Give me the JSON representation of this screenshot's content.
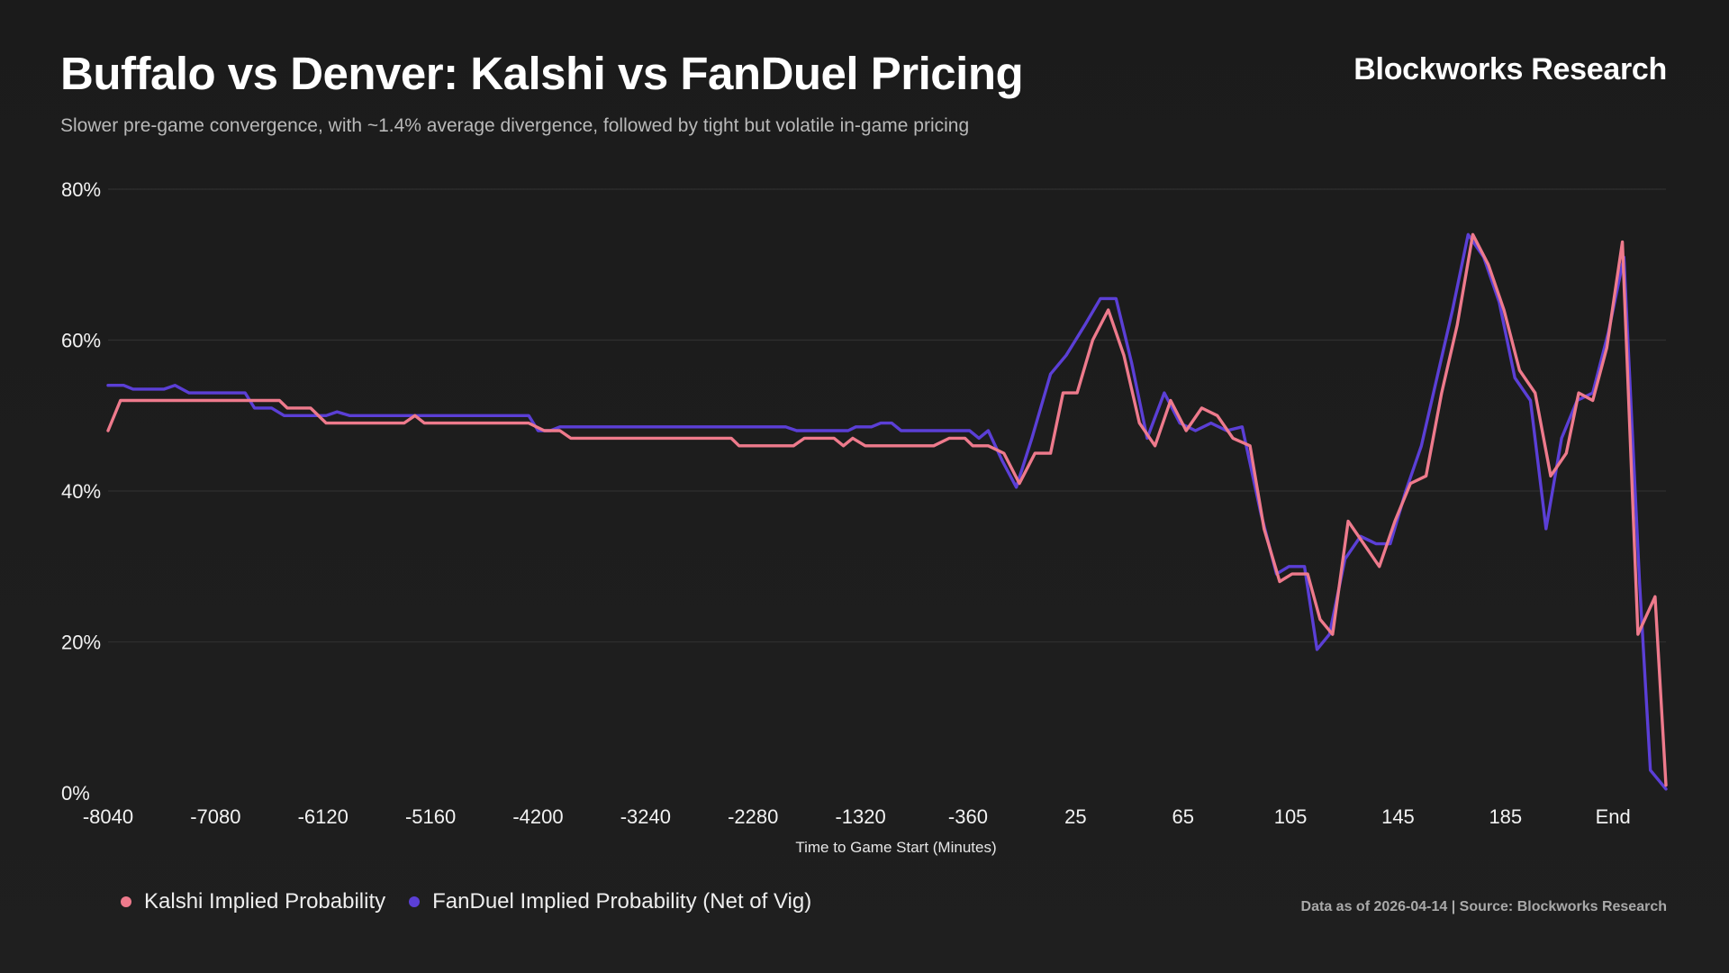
{
  "header": {
    "title": "Buffalo vs Denver: Kalshi vs FanDuel Pricing",
    "subtitle": "Slower pre-game convergence, with ~1.4% average divergence, followed by tight but volatile in-game pricing",
    "brand": "Blockworks Research"
  },
  "footer": {
    "source": "Data as of 2026-04-14 | Source: Blockworks Research"
  },
  "colors": {
    "kalshi": "#ee7a8c",
    "fanduel": "#5b3fd6",
    "grid": "#2f2f2f",
    "background": "#1d1d1d"
  },
  "chart_data": {
    "type": "line",
    "title": "Buffalo vs Denver: Kalshi vs FanDuel Pricing",
    "xlabel": "Time to Game Start (Minutes)",
    "ylabel": "",
    "ylim": [
      0,
      80
    ],
    "xlim": [
      0,
      1
    ],
    "yticks": [
      0,
      20,
      40,
      60,
      80
    ],
    "ytick_labels": [
      "0%",
      "20%",
      "40%",
      "60%",
      "80%"
    ],
    "xticks": [
      {
        "pos": 0.0,
        "label": "-8040"
      },
      {
        "pos": 0.069,
        "label": "-7080"
      },
      {
        "pos": 0.138,
        "label": "-6120"
      },
      {
        "pos": 0.207,
        "label": "-5160"
      },
      {
        "pos": 0.276,
        "label": "-4200"
      },
      {
        "pos": 0.345,
        "label": "-3240"
      },
      {
        "pos": 0.414,
        "label": "-2280"
      },
      {
        "pos": 0.483,
        "label": "-1320"
      },
      {
        "pos": 0.552,
        "label": "-360"
      },
      {
        "pos": 0.621,
        "label": "25"
      },
      {
        "pos": 0.69,
        "label": "65"
      },
      {
        "pos": 0.759,
        "label": "105"
      },
      {
        "pos": 0.828,
        "label": "145"
      },
      {
        "pos": 0.897,
        "label": "185"
      },
      {
        "pos": 0.966,
        "label": "End"
      }
    ],
    "legend_position": "bottom-left",
    "series": [
      {
        "name": "Kalshi Implied Probability",
        "color": "#ee7a8c",
        "points": [
          [
            0.0,
            48
          ],
          [
            0.008,
            52
          ],
          [
            0.02,
            52
          ],
          [
            0.05,
            52
          ],
          [
            0.1,
            52
          ],
          [
            0.11,
            52
          ],
          [
            0.115,
            51
          ],
          [
            0.13,
            51
          ],
          [
            0.14,
            49
          ],
          [
            0.19,
            49
          ],
          [
            0.197,
            50
          ],
          [
            0.203,
            49
          ],
          [
            0.27,
            49
          ],
          [
            0.28,
            48
          ],
          [
            0.29,
            48
          ],
          [
            0.297,
            47
          ],
          [
            0.4,
            47
          ],
          [
            0.405,
            46
          ],
          [
            0.44,
            46
          ],
          [
            0.447,
            47
          ],
          [
            0.466,
            47
          ],
          [
            0.472,
            46
          ],
          [
            0.478,
            47
          ],
          [
            0.486,
            46
          ],
          [
            0.53,
            46
          ],
          [
            0.54,
            47
          ],
          [
            0.55,
            47
          ],
          [
            0.555,
            46
          ],
          [
            0.565,
            46
          ],
          [
            0.575,
            45
          ],
          [
            0.585,
            41
          ],
          [
            0.595,
            45
          ],
          [
            0.605,
            45
          ],
          [
            0.613,
            53
          ],
          [
            0.622,
            53
          ],
          [
            0.632,
            60
          ],
          [
            0.642,
            64
          ],
          [
            0.652,
            58
          ],
          [
            0.662,
            49
          ],
          [
            0.672,
            46
          ],
          [
            0.682,
            52
          ],
          [
            0.692,
            48
          ],
          [
            0.702,
            51
          ],
          [
            0.712,
            50
          ],
          [
            0.722,
            47
          ],
          [
            0.733,
            46
          ],
          [
            0.742,
            35
          ],
          [
            0.752,
            28
          ],
          [
            0.76,
            29
          ],
          [
            0.77,
            29
          ],
          [
            0.778,
            23
          ],
          [
            0.786,
            21
          ],
          [
            0.796,
            36
          ],
          [
            0.806,
            33
          ],
          [
            0.816,
            30
          ],
          [
            0.826,
            36
          ],
          [
            0.836,
            41
          ],
          [
            0.846,
            42
          ],
          [
            0.856,
            53
          ],
          [
            0.866,
            62
          ],
          [
            0.876,
            74
          ],
          [
            0.886,
            70
          ],
          [
            0.896,
            64
          ],
          [
            0.906,
            56
          ],
          [
            0.916,
            53
          ],
          [
            0.926,
            42
          ],
          [
            0.936,
            45
          ],
          [
            0.944,
            53
          ],
          [
            0.953,
            52
          ],
          [
            0.962,
            59
          ],
          [
            0.972,
            73
          ],
          [
            0.982,
            21
          ],
          [
            0.993,
            26
          ],
          [
            1.0,
            1
          ]
        ]
      },
      {
        "name": "FanDuel Implied Probability (Net of Vig)",
        "color": "#5b3fd6",
        "points": [
          [
            0.0,
            54
          ],
          [
            0.01,
            54
          ],
          [
            0.016,
            53.5
          ],
          [
            0.036,
            53.5
          ],
          [
            0.043,
            54
          ],
          [
            0.052,
            53
          ],
          [
            0.088,
            53
          ],
          [
            0.094,
            51
          ],
          [
            0.105,
            51
          ],
          [
            0.113,
            50
          ],
          [
            0.14,
            50
          ],
          [
            0.147,
            50.5
          ],
          [
            0.155,
            50
          ],
          [
            0.27,
            50
          ],
          [
            0.276,
            48
          ],
          [
            0.284,
            48
          ],
          [
            0.29,
            48.5
          ],
          [
            0.435,
            48.5
          ],
          [
            0.442,
            48
          ],
          [
            0.475,
            48
          ],
          [
            0.48,
            48.5
          ],
          [
            0.49,
            48.5
          ],
          [
            0.496,
            49
          ],
          [
            0.503,
            49
          ],
          [
            0.509,
            48
          ],
          [
            0.553,
            48
          ],
          [
            0.559,
            47
          ],
          [
            0.565,
            48
          ],
          [
            0.574,
            44
          ],
          [
            0.583,
            40.5
          ],
          [
            0.593,
            47
          ],
          [
            0.605,
            55.5
          ],
          [
            0.615,
            58
          ],
          [
            0.627,
            62
          ],
          [
            0.637,
            65.5
          ],
          [
            0.647,
            65.5
          ],
          [
            0.657,
            57
          ],
          [
            0.667,
            47
          ],
          [
            0.678,
            53
          ],
          [
            0.688,
            49
          ],
          [
            0.698,
            48
          ],
          [
            0.708,
            49
          ],
          [
            0.718,
            48
          ],
          [
            0.728,
            48.5
          ],
          [
            0.74,
            37
          ],
          [
            0.75,
            29
          ],
          [
            0.758,
            30
          ],
          [
            0.768,
            30
          ],
          [
            0.776,
            19
          ],
          [
            0.784,
            21
          ],
          [
            0.794,
            31
          ],
          [
            0.804,
            34
          ],
          [
            0.814,
            33
          ],
          [
            0.823,
            33
          ],
          [
            0.833,
            40
          ],
          [
            0.843,
            46
          ],
          [
            0.853,
            55
          ],
          [
            0.863,
            64
          ],
          [
            0.873,
            74
          ],
          [
            0.883,
            71
          ],
          [
            0.893,
            65
          ],
          [
            0.903,
            55
          ],
          [
            0.913,
            52
          ],
          [
            0.923,
            35
          ],
          [
            0.933,
            47
          ],
          [
            0.943,
            52
          ],
          [
            0.953,
            53
          ],
          [
            0.963,
            61
          ],
          [
            0.973,
            71
          ],
          [
            0.983,
            28
          ],
          [
            0.99,
            3
          ],
          [
            1.0,
            0.5
          ]
        ]
      }
    ]
  }
}
